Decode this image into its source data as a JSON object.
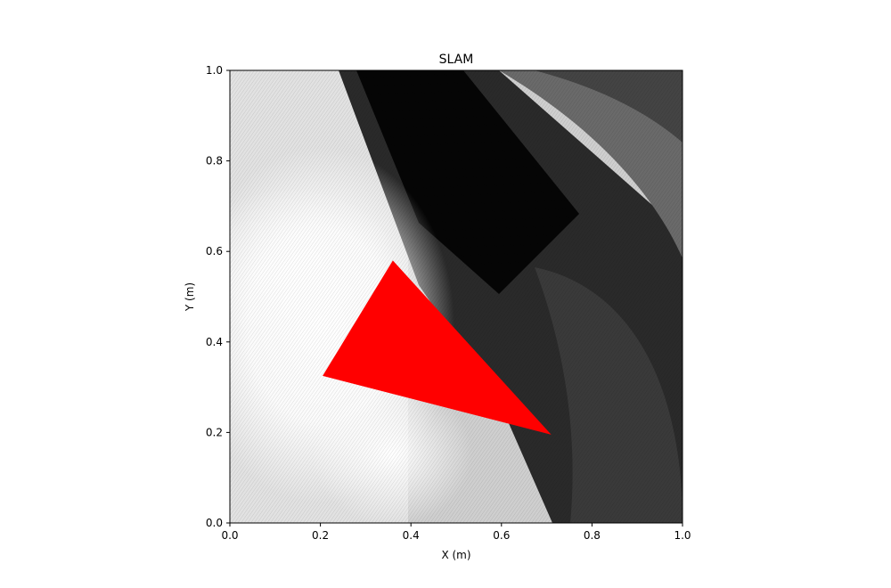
{
  "chart_data": {
    "type": "heatmap",
    "title": "SLAM",
    "xlabel": "X (m)",
    "ylabel": "Y (m)",
    "xlim": [
      0.0,
      1.0
    ],
    "ylim": [
      0.0,
      1.0
    ],
    "xticks": [
      0.0,
      0.2,
      0.4,
      0.6,
      0.8,
      1.0
    ],
    "xtick_labels": [
      "0.0",
      "0.2",
      "0.4",
      "0.6",
      "0.8",
      "1.0"
    ],
    "yticks": [
      0.0,
      0.2,
      0.4,
      0.6,
      0.8,
      1.0
    ],
    "ytick_labels": [
      "0.0",
      "0.2",
      "0.4",
      "0.6",
      "0.8",
      "1.0"
    ],
    "grid": false,
    "colormap": "gray",
    "robot_pose_triangle": {
      "color": "#ff0000",
      "vertices": [
        [
          0.36,
          0.58
        ],
        [
          0.205,
          0.325
        ],
        [
          0.71,
          0.195
        ]
      ]
    }
  }
}
